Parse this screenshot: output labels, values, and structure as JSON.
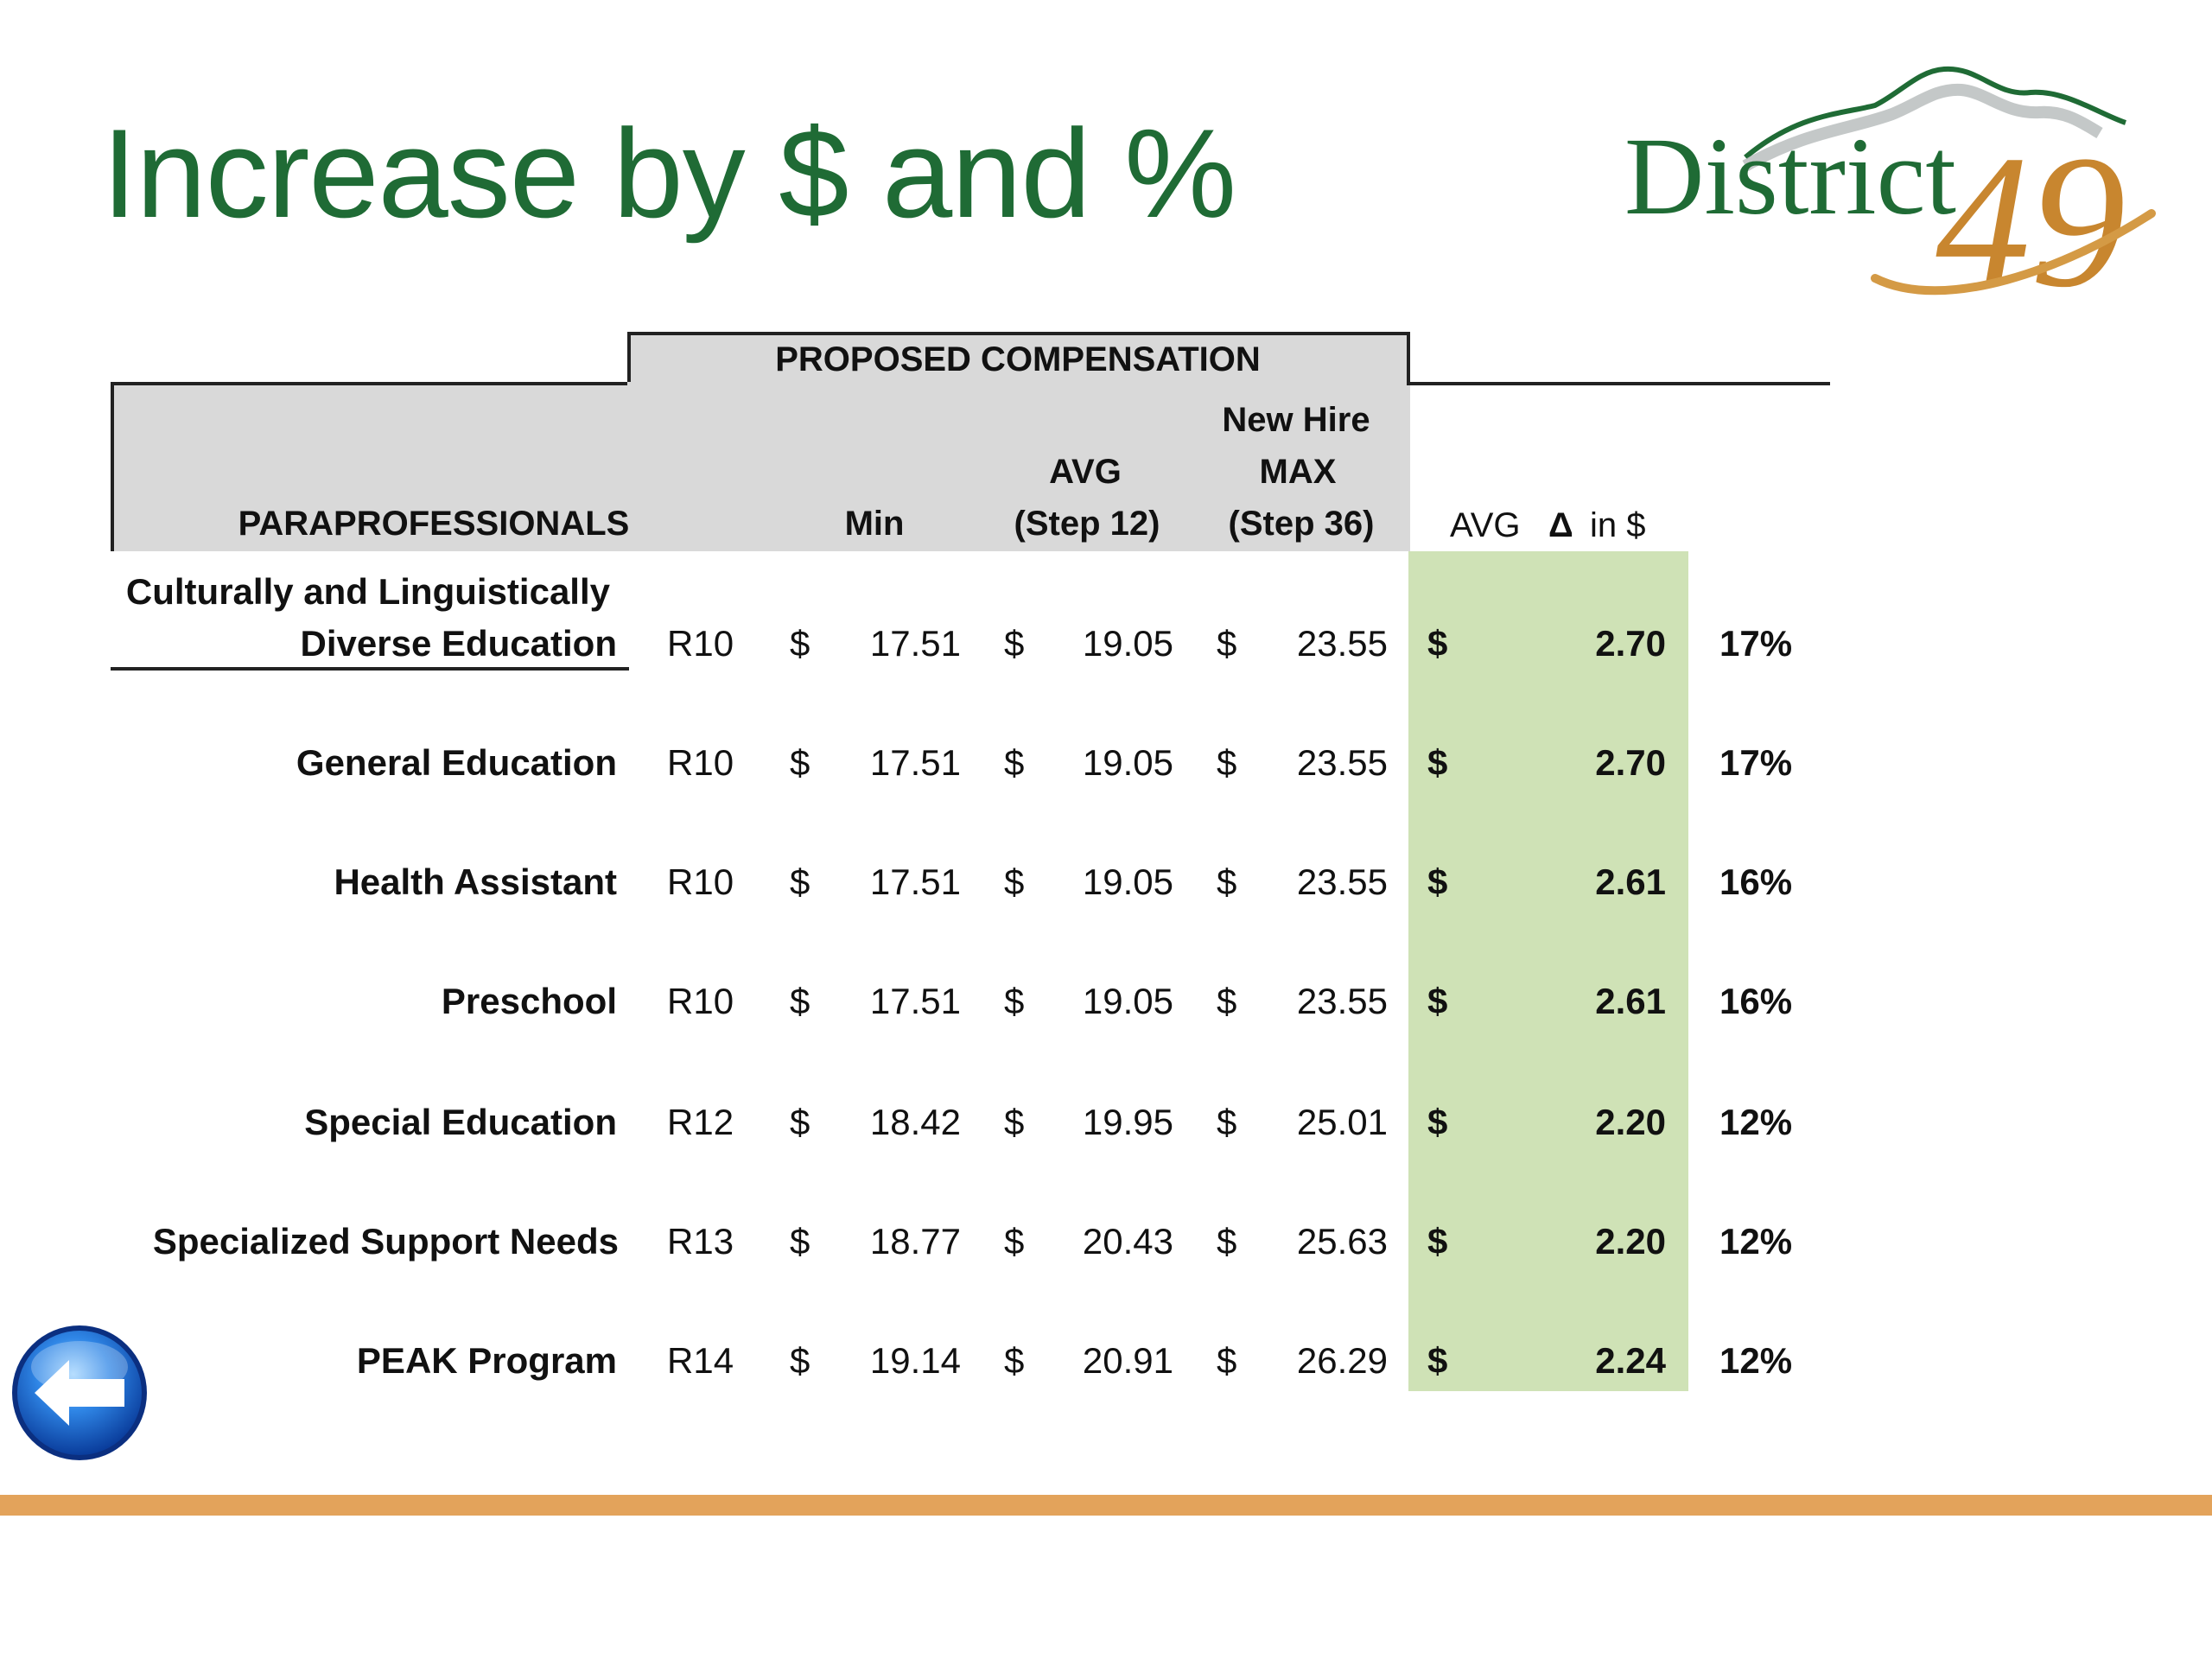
{
  "slide": {
    "title": "Increase by $ and %"
  },
  "logo": {
    "text": "District",
    "number": "49",
    "colors": {
      "green": "#1f6b35",
      "gold": "#c8862f",
      "gray": "#9aa0a0"
    }
  },
  "table": {
    "group_header": "PROPOSED COMPENSATION",
    "headers": {
      "category": "PARAPROFESSIONALS",
      "min": "Min",
      "avg_line1": "AVG",
      "avg_line2": "(Step 12)",
      "newhire_line1": "New Hire",
      "newhire_line2": "MAX",
      "newhire_line3": "(Step 36)",
      "avg_delta": "AVG",
      "delta_symbol": "Δ",
      "delta_unit": "in $"
    },
    "currency": "$",
    "rows": [
      {
        "name_line1": "Culturally and Linguistically",
        "name_line2": "Diverse Education",
        "range": "R10",
        "min": "17.51",
        "avg": "19.05",
        "max": "23.55",
        "delta": "2.70",
        "pct": "17%"
      },
      {
        "name": "General Education",
        "range": "R10",
        "min": "17.51",
        "avg": "19.05",
        "max": "23.55",
        "delta": "2.70",
        "pct": "17%"
      },
      {
        "name": "Health Assistant",
        "range": "R10",
        "min": "17.51",
        "avg": "19.05",
        "max": "23.55",
        "delta": "2.61",
        "pct": "16%"
      },
      {
        "name": "Preschool",
        "range": "R10",
        "min": "17.51",
        "avg": "19.05",
        "max": "23.55",
        "delta": "2.61",
        "pct": "16%"
      },
      {
        "name": "Special Education",
        "range": "R12",
        "min": "18.42",
        "avg": "19.95",
        "max": "25.01",
        "delta": "2.20",
        "pct": "12%"
      },
      {
        "name": "Specialized Support Needs",
        "range": "R13",
        "min": "18.77",
        "avg": "20.43",
        "max": "25.63",
        "delta": "2.20",
        "pct": "12%"
      },
      {
        "name": "PEAK Program",
        "range": "R14",
        "min": "19.14",
        "avg": "20.91",
        "max": "26.29",
        "delta": "2.24",
        "pct": "12%"
      }
    ]
  },
  "colors": {
    "title": "#1f6b35",
    "header_fill": "#d9d9d9",
    "highlight_fill": "#cfe2b6",
    "bottom_bar": "#e3a35b",
    "back_button": "#1a5fc8"
  },
  "icons": {
    "back": "arrow-left-icon"
  }
}
